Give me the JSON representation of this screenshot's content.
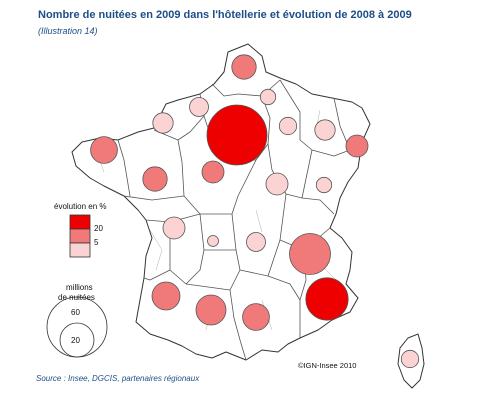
{
  "header": {
    "title": "Nombre de nuitées en 2009 dans l'hôtellerie et évolution de 2008 à 2009",
    "subtitle": "(Illustration 14)"
  },
  "footer": {
    "source": "Source : Insee, DGCIS, partenaires régionaux",
    "credit": "©IGN-Insee 2010"
  },
  "legend_color": {
    "title": "évolution en %",
    "labels": [
      "20",
      "5"
    ],
    "colors": [
      "#ee0000",
      "#f07a7a",
      "#fbd3d3"
    ]
  },
  "legend_size": {
    "title_line1": "millions",
    "title_line2": "de nuitées",
    "labels": [
      "60",
      "20"
    ]
  },
  "colors": {
    "title": "#1d4e89",
    "map_fill": "#ffffff",
    "map_stroke": "#333333"
  },
  "map_data": {
    "symbols": [
      {
        "name": "ile-de-france",
        "value": 60,
        "class": 0
      },
      {
        "name": "provence-alpes-cote-d-azur",
        "value": 30,
        "class": 0
      },
      {
        "name": "rhone-alpes",
        "value": 28,
        "class": 1
      },
      {
        "name": "bretagne",
        "value": 12,
        "class": 1
      },
      {
        "name": "nord-pas-de-calais",
        "value": 10,
        "class": 1
      },
      {
        "name": "aquitaine",
        "value": 13,
        "class": 1
      },
      {
        "name": "midi-pyrenees",
        "value": 15,
        "class": 1
      },
      {
        "name": "languedoc-roussillon",
        "value": 12,
        "class": 1
      },
      {
        "name": "pays-de-la-loire",
        "value": 10,
        "class": 1
      },
      {
        "name": "centre",
        "value": 8,
        "class": 1
      },
      {
        "name": "alsace",
        "value": 8,
        "class": 1
      },
      {
        "name": "poitou-charentes",
        "value": 8,
        "class": 2
      },
      {
        "name": "champagne-ardenne",
        "value": 5,
        "class": 2
      },
      {
        "name": "lorraine",
        "value": 7,
        "class": 2
      },
      {
        "name": "haute-normandie",
        "value": 6,
        "class": 2
      },
      {
        "name": "basse-normandie",
        "value": 7,
        "class": 2
      },
      {
        "name": "picardie",
        "value": 4,
        "class": 2
      },
      {
        "name": "bourgogne",
        "value": 8,
        "class": 2
      },
      {
        "name": "franche-comte",
        "value": 4,
        "class": 2
      },
      {
        "name": "auvergne",
        "value": 6,
        "class": 2
      },
      {
        "name": "limousin",
        "value": 2,
        "class": 2
      },
      {
        "name": "corse",
        "value": 5,
        "class": 2
      }
    ]
  }
}
